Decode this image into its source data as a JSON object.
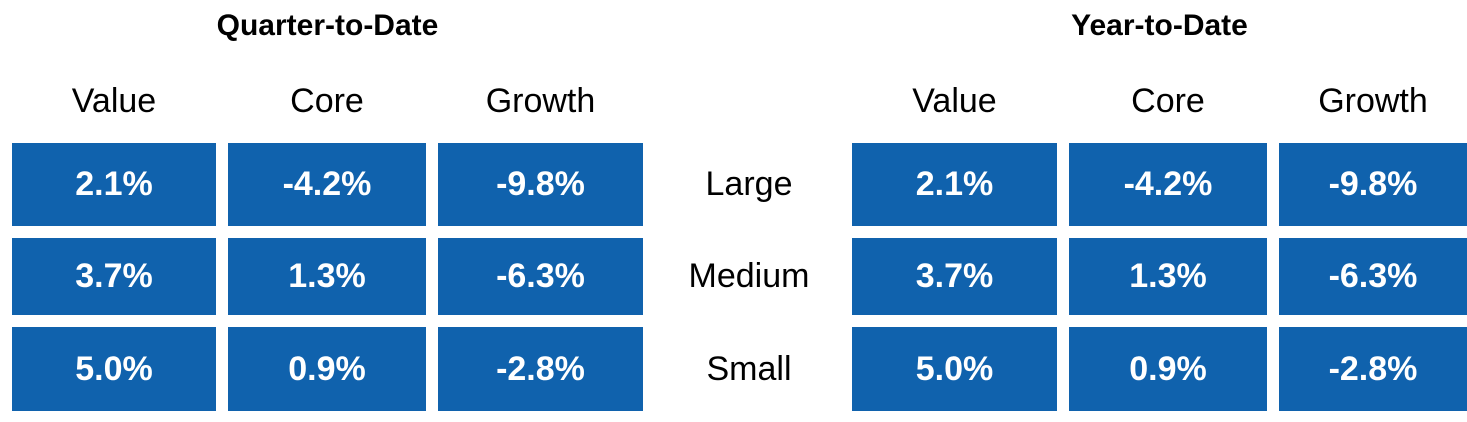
{
  "chart_data": {
    "type": "table",
    "colors": {
      "cell_background": "#1062ad",
      "cell_text": "#ffffff"
    },
    "row_labels": [
      "Large",
      "Medium",
      "Small"
    ],
    "tables": [
      {
        "title": "Quarter-to-Date",
        "columns": [
          "Value",
          "Core",
          "Growth"
        ],
        "rows": [
          [
            "2.1%",
            "-4.2%",
            "-9.8%"
          ],
          [
            "3.7%",
            "1.3%",
            "-6.3%"
          ],
          [
            "5.0%",
            "0.9%",
            "-2.8%"
          ]
        ]
      },
      {
        "title": "Year-to-Date",
        "columns": [
          "Value",
          "Core",
          "Growth"
        ],
        "rows": [
          [
            "2.1%",
            "-4.2%",
            "-9.8%"
          ],
          [
            "3.7%",
            "1.3%",
            "-6.3%"
          ],
          [
            "5.0%",
            "0.9%",
            "-2.8%"
          ]
        ]
      }
    ]
  }
}
